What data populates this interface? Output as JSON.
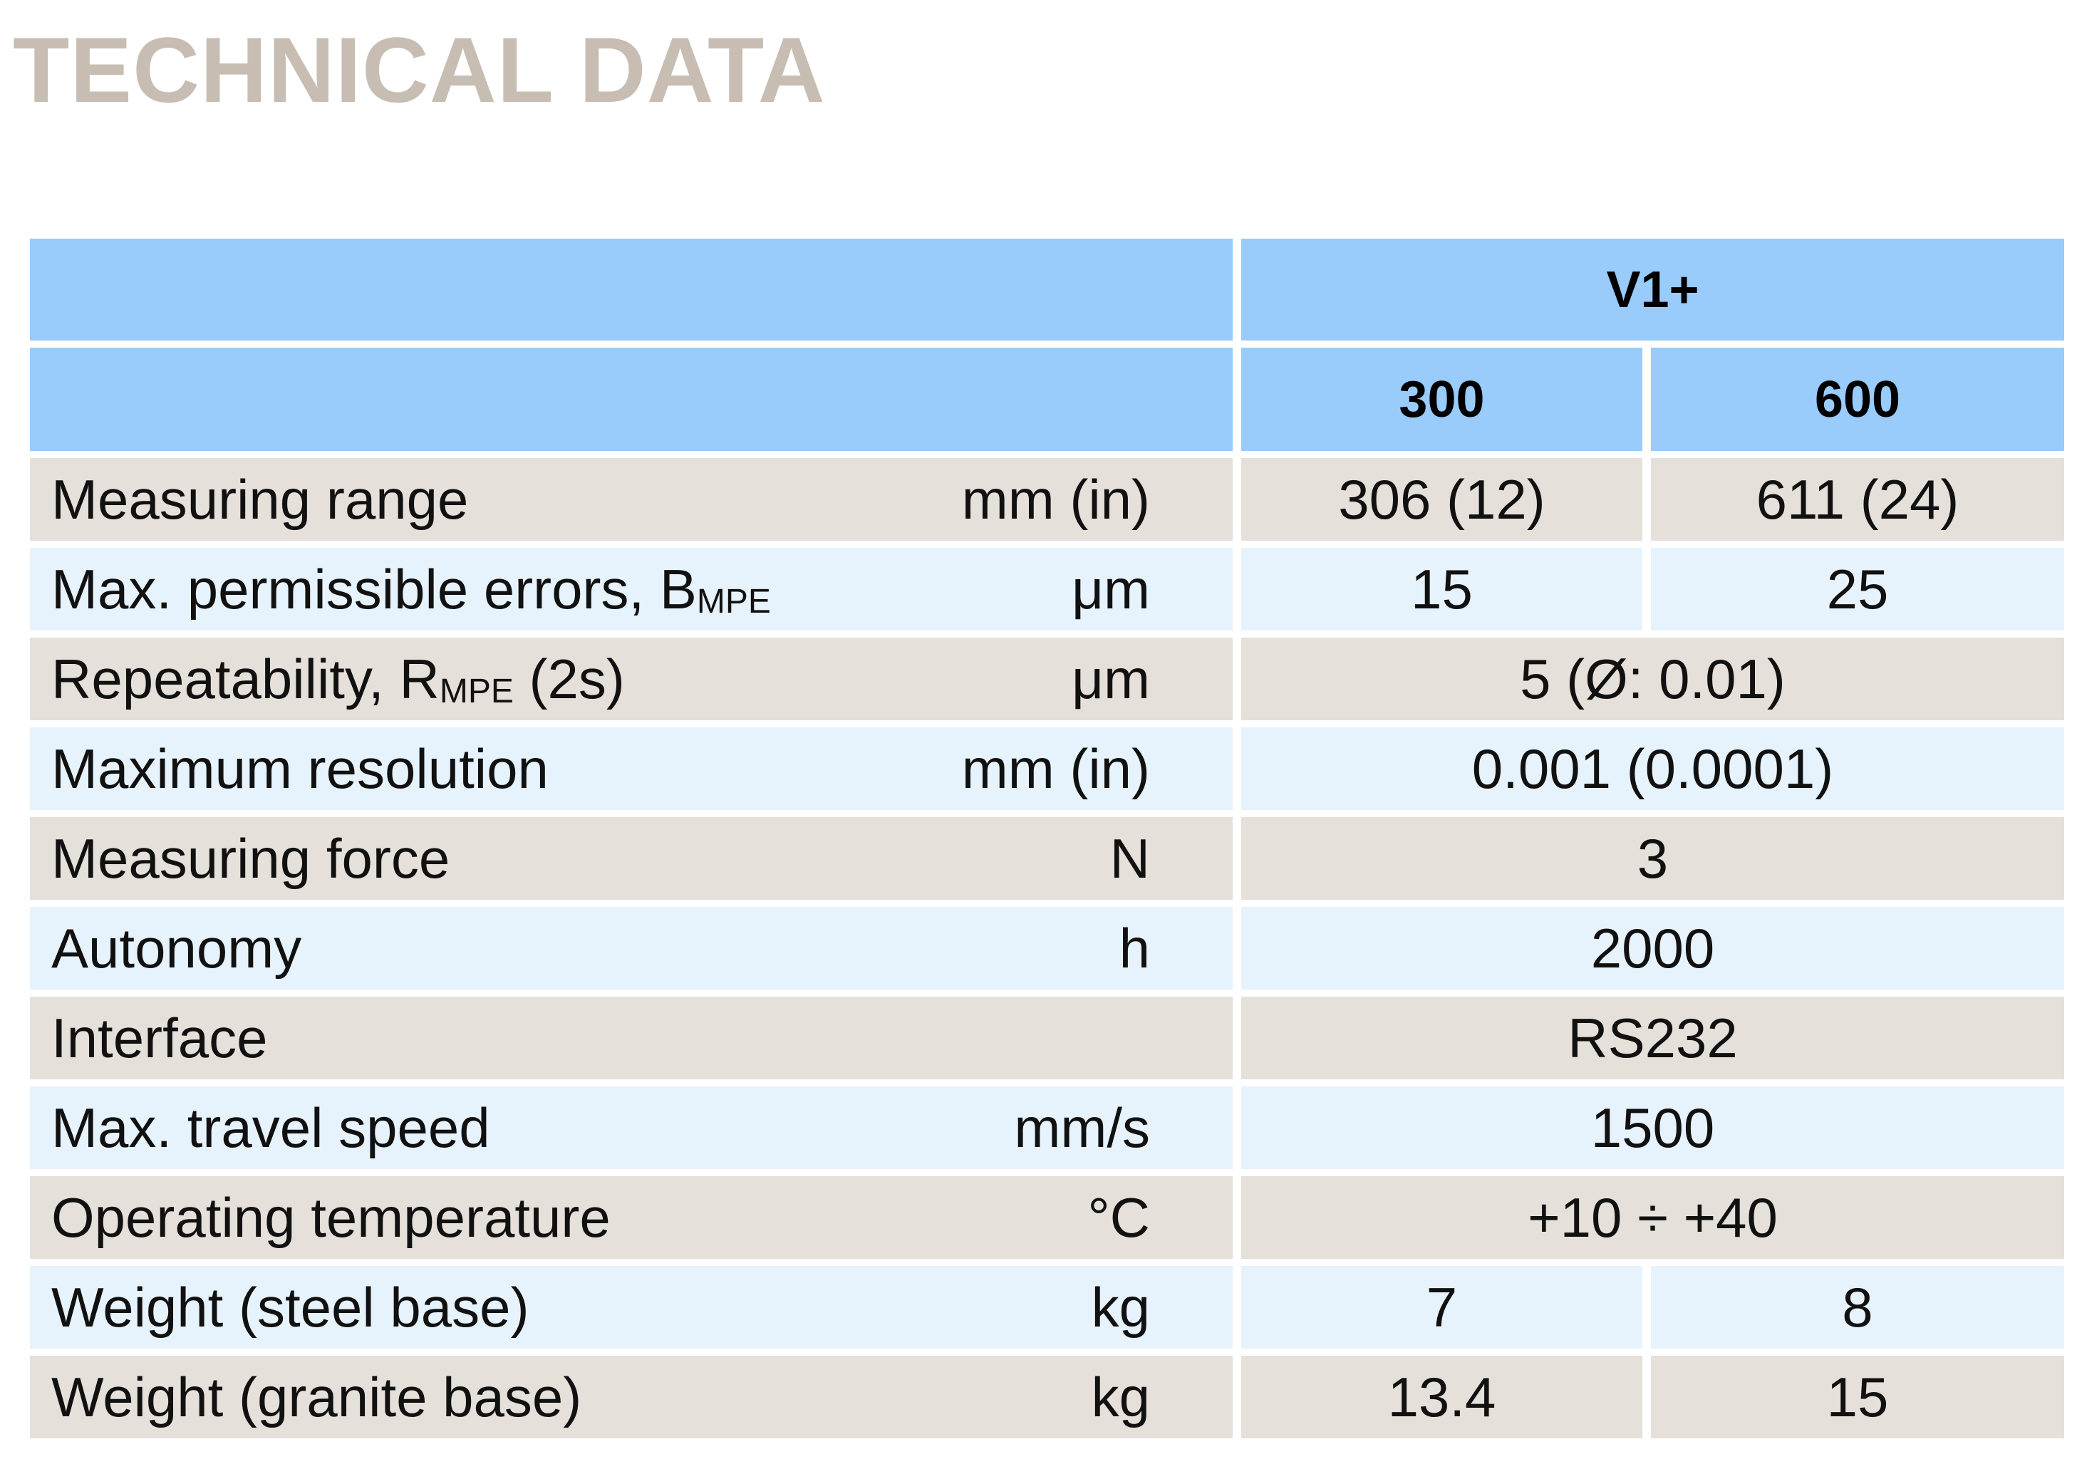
{
  "title": "TECHNICAL DATA",
  "table": {
    "model": "V1+",
    "variants": [
      "300",
      "600"
    ],
    "rows": [
      {
        "label": "Measuring range",
        "unit": "mm (in)",
        "values": [
          "306 (12)",
          "611 (24)"
        ]
      },
      {
        "label": "Max. permissible errors, B",
        "label_sub": "MPE",
        "unit": "μm",
        "values": [
          "15",
          "25"
        ]
      },
      {
        "label": "Repeatability, R",
        "label_sub": "MPE",
        "label_after": " (2s)",
        "unit": "μm",
        "value": "5 (Ø: 0.01)"
      },
      {
        "label": "Maximum resolution",
        "unit": "mm (in)",
        "value": "0.001 (0.0001)"
      },
      {
        "label": "Measuring force",
        "unit": "N",
        "value": "3"
      },
      {
        "label": "Autonomy",
        "unit": "h",
        "value": "2000"
      },
      {
        "label": "Interface",
        "unit": "",
        "value": "RS232"
      },
      {
        "label": "Max. travel speed",
        "unit": "mm/s",
        "value": "1500"
      },
      {
        "label": "Operating temperature",
        "unit": "°C",
        "value": "+10 ÷ +40"
      },
      {
        "label": "Weight (steel base)",
        "unit": "kg",
        "values": [
          "7",
          "8"
        ]
      },
      {
        "label": "Weight (granite base)",
        "unit": "kg",
        "values": [
          "13.4",
          "15"
        ]
      }
    ]
  },
  "colors": {
    "title": "#c7bdb2",
    "header_bg": "#99cbfb",
    "row_beige": "#e6e0da",
    "row_blue": "#e7f3fc"
  }
}
